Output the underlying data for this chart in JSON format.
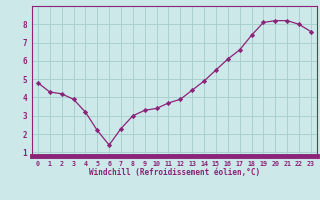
{
  "x": [
    0,
    1,
    2,
    3,
    4,
    5,
    6,
    7,
    8,
    9,
    10,
    11,
    12,
    13,
    14,
    15,
    16,
    17,
    18,
    19,
    20,
    21,
    22,
    23
  ],
  "y": [
    4.8,
    4.3,
    4.2,
    3.9,
    3.2,
    2.2,
    1.4,
    2.3,
    3.0,
    3.3,
    3.4,
    3.7,
    3.9,
    4.4,
    4.9,
    5.5,
    6.1,
    6.6,
    7.4,
    8.1,
    8.2,
    8.2,
    8.0,
    7.6
  ],
  "line_color": "#8b2378",
  "marker": "D",
  "marker_size": 2.2,
  "bg_color": "#cce8e8",
  "grid_color": "#aad0d0",
  "xlabel": "Windchill (Refroidissement éolien,°C)",
  "xlabel_color": "#8b2378",
  "tick_color": "#8b2378",
  "ylim": [
    0.8,
    9.0
  ],
  "xlim": [
    -0.5,
    23.5
  ],
  "yticks": [
    1,
    2,
    3,
    4,
    5,
    6,
    7,
    8
  ],
  "xticks": [
    0,
    1,
    2,
    3,
    4,
    5,
    6,
    7,
    8,
    9,
    10,
    11,
    12,
    13,
    14,
    15,
    16,
    17,
    18,
    19,
    20,
    21,
    22,
    23
  ],
  "xtick_labels": [
    "0",
    "1",
    "2",
    "3",
    "4",
    "5",
    "6",
    "7",
    "8",
    "9",
    "10",
    "11",
    "12",
    "13",
    "14",
    "15",
    "16",
    "17",
    "18",
    "19",
    "20",
    "21",
    "22",
    "23"
  ],
  "spine_color": "#8b2378",
  "bottom_bar_color": "#8b2378"
}
